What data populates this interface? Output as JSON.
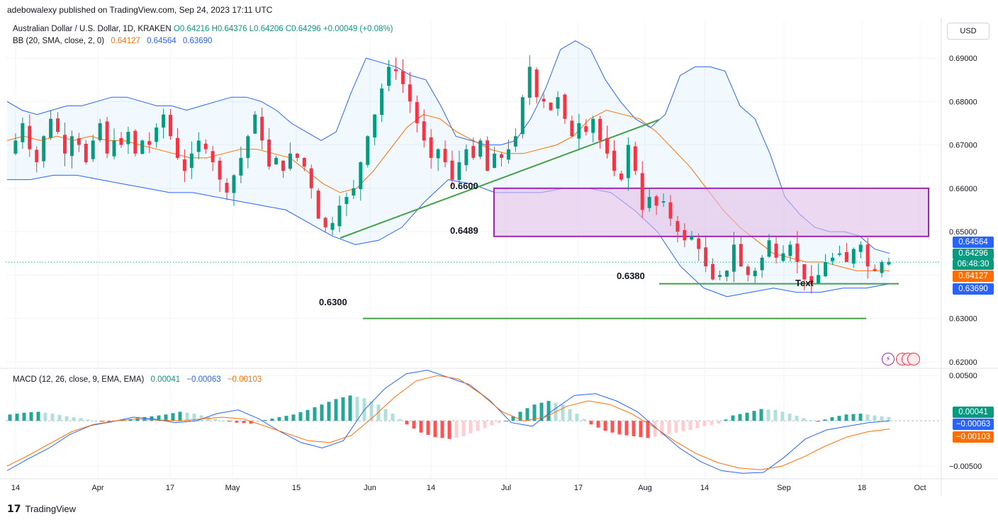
{
  "publisher_line": "adebowalexy published on TradingView.com, Sep 24, 2023 17:11 UTC",
  "symbol": {
    "name": "Australian Dollar / U.S. Dollar, 1D, KRAKEN",
    "open": "O0.64216",
    "high": "H0.64376",
    "low": "L0.64206",
    "close": "C0.64296",
    "change": "+0.00049 (+0.08%)"
  },
  "bb_legend": {
    "label": "BB (20, SMA, close, 2, 0)",
    "basis": "0.64127",
    "upper": "0.64564",
    "lower": "0.63690"
  },
  "macd_legend": {
    "label": "MACD (12, 26, close, 9, EMA, EMA)",
    "hist": "0.00041",
    "macd": "−0.00063",
    "signal": "−0.00103"
  },
  "currency_button": "USD",
  "price_axis_labels": [
    "0.69000",
    "0.68000",
    "0.67000",
    "0.66000",
    "0.65000",
    "0.63000",
    "0.62000"
  ],
  "macd_axis_labels": [
    "0.00500",
    "−0.00500"
  ],
  "time_axis_labels": [
    "14",
    "Apr",
    "17",
    "May",
    "15",
    "Jun",
    "14",
    "Jul",
    "17",
    "Aug",
    "14",
    "Sep",
    "18",
    "Oct"
  ],
  "price_tags": {
    "upper": "0.64564",
    "last": "0.64296",
    "countdown": "06:48:30",
    "basis": "0.64127",
    "lower": "0.63690",
    "macd_hist": "0.00041",
    "macd_line": "−0.00063",
    "macd_signal": "−0.00103"
  },
  "annotations": {
    "level_6600": "0.6600",
    "level_6489": "0.6489",
    "level_6380": "0.6380",
    "level_6300": "0.6300",
    "text_label": "Text"
  },
  "footer": "TradingView",
  "colors": {
    "up": "#089981",
    "down": "#f23645",
    "bb_band": "#2962ff",
    "bb_basis": "#ff6d00",
    "trend_line": "#43a047",
    "rect_border": "#9c27b0",
    "rect_fill": "#e1bee7",
    "macd_line": "#2962ff",
    "signal_line": "#ff6d00",
    "hist_up_strong": "#26a69a",
    "hist_up_weak": "#b2dfdb",
    "hist_dn_strong": "#ff5252",
    "hist_dn_weak": "#ffcdd2"
  },
  "chart_data": {
    "type": "candlestick",
    "symbol": "AUDUSD",
    "timeframe": "1D",
    "price_range": [
      0.6185,
      0.6985
    ],
    "x_labels": [
      "14",
      "Apr",
      "17",
      "May",
      "15",
      "Jun",
      "14",
      "Jul",
      "17",
      "Aug",
      "14",
      "Sep",
      "18",
      "Oct"
    ],
    "close_path": [
      0.668,
      0.671,
      0.675,
      0.669,
      0.666,
      0.672,
      0.676,
      0.673,
      0.668,
      0.672,
      0.67,
      0.666,
      0.671,
      0.675,
      0.668,
      0.671,
      0.67,
      0.673,
      0.668,
      0.671,
      0.67,
      0.674,
      0.677,
      0.672,
      0.667,
      0.664,
      0.668,
      0.671,
      0.669,
      0.666,
      0.662,
      0.659,
      0.663,
      0.667,
      0.672,
      0.677,
      0.671,
      0.665,
      0.667,
      0.664,
      0.668,
      0.667,
      0.665,
      0.66,
      0.653,
      0.651,
      0.652,
      0.656,
      0.658,
      0.66,
      0.666,
      0.672,
      0.677,
      0.683,
      0.688,
      0.687,
      0.684,
      0.68,
      0.675,
      0.671,
      0.667,
      0.669,
      0.666,
      0.662,
      0.666,
      0.669,
      0.667,
      0.671,
      0.664,
      0.668,
      0.667,
      0.669,
      0.672,
      0.681,
      0.688,
      0.681,
      0.68,
      0.678,
      0.681,
      0.676,
      0.672,
      0.675,
      0.673,
      0.676,
      0.671,
      0.668,
      0.664,
      0.662,
      0.67,
      0.664,
      0.655,
      0.658,
      0.656,
      0.657,
      0.653,
      0.65,
      0.648,
      0.649,
      0.646,
      0.642,
      0.639,
      0.64,
      0.641,
      0.647,
      0.642,
      0.64,
      0.641,
      0.644,
      0.648,
      0.644,
      0.645,
      0.647,
      0.643,
      0.639,
      0.638,
      0.64,
      0.643,
      0.644,
      0.645,
      0.643,
      0.646,
      0.647,
      0.642,
      0.641,
      0.643,
      0.643
    ],
    "bb_upper_path": [
      0.68,
      0.678,
      0.677,
      0.678,
      0.679,
      0.679,
      0.68,
      0.681,
      0.681,
      0.68,
      0.679,
      0.679,
      0.678,
      0.679,
      0.68,
      0.681,
      0.681,
      0.68,
      0.678,
      0.675,
      0.673,
      0.671,
      0.673,
      0.682,
      0.69,
      0.689,
      0.688,
      0.686,
      0.685,
      0.679,
      0.672,
      0.671,
      0.67,
      0.67,
      0.671,
      0.676,
      0.683,
      0.692,
      0.694,
      0.692,
      0.685,
      0.68,
      0.676,
      0.674,
      0.677,
      0.686,
      0.688,
      0.688,
      0.687,
      0.679,
      0.676,
      0.668,
      0.658,
      0.654,
      0.651,
      0.65,
      0.65,
      0.649,
      0.646,
      0.645
    ],
    "bb_basis_path": [
      0.671,
      0.672,
      0.671,
      0.672,
      0.671,
      0.672,
      0.671,
      0.671,
      0.67,
      0.669,
      0.668,
      0.667,
      0.667,
      0.668,
      0.669,
      0.669,
      0.668,
      0.667,
      0.664,
      0.661,
      0.659,
      0.66,
      0.664,
      0.669,
      0.674,
      0.677,
      0.676,
      0.673,
      0.671,
      0.669,
      0.668,
      0.668,
      0.669,
      0.67,
      0.672,
      0.676,
      0.678,
      0.677,
      0.676,
      0.673,
      0.669,
      0.665,
      0.66,
      0.655,
      0.651,
      0.648,
      0.645,
      0.644,
      0.643,
      0.643,
      0.642,
      0.641,
      0.641,
      0.641
    ],
    "bb_lower_path": [
      0.662,
      0.662,
      0.663,
      0.663,
      0.662,
      0.661,
      0.66,
      0.659,
      0.659,
      0.658,
      0.657,
      0.656,
      0.655,
      0.652,
      0.649,
      0.647,
      0.648,
      0.651,
      0.657,
      0.662,
      0.661,
      0.659,
      0.659,
      0.659,
      0.66,
      0.66,
      0.659,
      0.655,
      0.65,
      0.642,
      0.637,
      0.635,
      0.636,
      0.637,
      0.636,
      0.636,
      0.637,
      0.637,
      0.638
    ],
    "macd_hist_path": [
      0.0007,
      0.0009,
      0.001,
      0.0008,
      0.0005,
      0.0003,
      0.0,
      -0.0002,
      0.0001,
      0.0003,
      0.0005,
      0.0007,
      0.001,
      0.0008,
      0.0004,
      0.0,
      -0.0002,
      -0.0003,
      0.0001,
      0.0004,
      0.0007,
      0.0012,
      0.0018,
      0.0024,
      0.0028,
      0.0025,
      0.0018,
      0.0008,
      -0.0004,
      -0.0013,
      -0.0018,
      -0.002,
      -0.0017,
      -0.0011,
      -0.0005,
      0.0,
      0.001,
      0.0018,
      0.0022,
      0.0018,
      0.0008,
      -0.0004,
      -0.0011,
      -0.0015,
      -0.0017,
      -0.0019,
      -0.0016,
      -0.0013,
      -0.001,
      -0.0006,
      -0.0003,
      0.0006,
      0.0009,
      0.0013,
      0.0012,
      0.0008,
      0.0003,
      -0.0001,
      0.0004,
      0.0007,
      0.0008,
      0.0006,
      0.0004
    ],
    "macd_line_path": [
      -0.0055,
      -0.0042,
      -0.003,
      -0.0015,
      -0.0005,
      -0.0001,
      0.0004,
      0.0002,
      -0.0002,
      0.0,
      0.0008,
      0.0012,
      0.0002,
      -0.0012,
      -0.0024,
      -0.003,
      -0.0022,
      0.0012,
      0.0036,
      0.0052,
      0.0056,
      0.0048,
      0.004,
      0.0022,
      -0.0002,
      -0.0006,
      0.0012,
      0.0028,
      0.003,
      0.0022,
      0.001,
      -0.001,
      -0.003,
      -0.0045,
      -0.0055,
      -0.0058,
      -0.0057,
      -0.004,
      -0.002,
      -0.001,
      -0.0006,
      -0.0002,
      0.0
    ],
    "signal_line_path": [
      -0.005,
      -0.0038,
      -0.0025,
      -0.0012,
      -0.0004,
      0.0,
      0.0002,
      0.0001,
      0.0,
      0.0002,
      0.0004,
      0.0002,
      -0.0006,
      -0.0014,
      -0.0022,
      -0.0024,
      -0.0016,
      0.0004,
      0.0026,
      0.0044,
      0.005,
      0.0046,
      0.003,
      0.001,
      0.0,
      0.0004,
      0.0016,
      0.0022,
      0.0018,
      0.0008,
      -0.0006,
      -0.0022,
      -0.0036,
      -0.0046,
      -0.0052,
      -0.0054,
      -0.005,
      -0.004,
      -0.0028,
      -0.0018,
      -0.0012,
      -0.0009
    ],
    "horizontal_levels": [
      0.66,
      0.6489,
      0.638,
      0.63
    ]
  }
}
